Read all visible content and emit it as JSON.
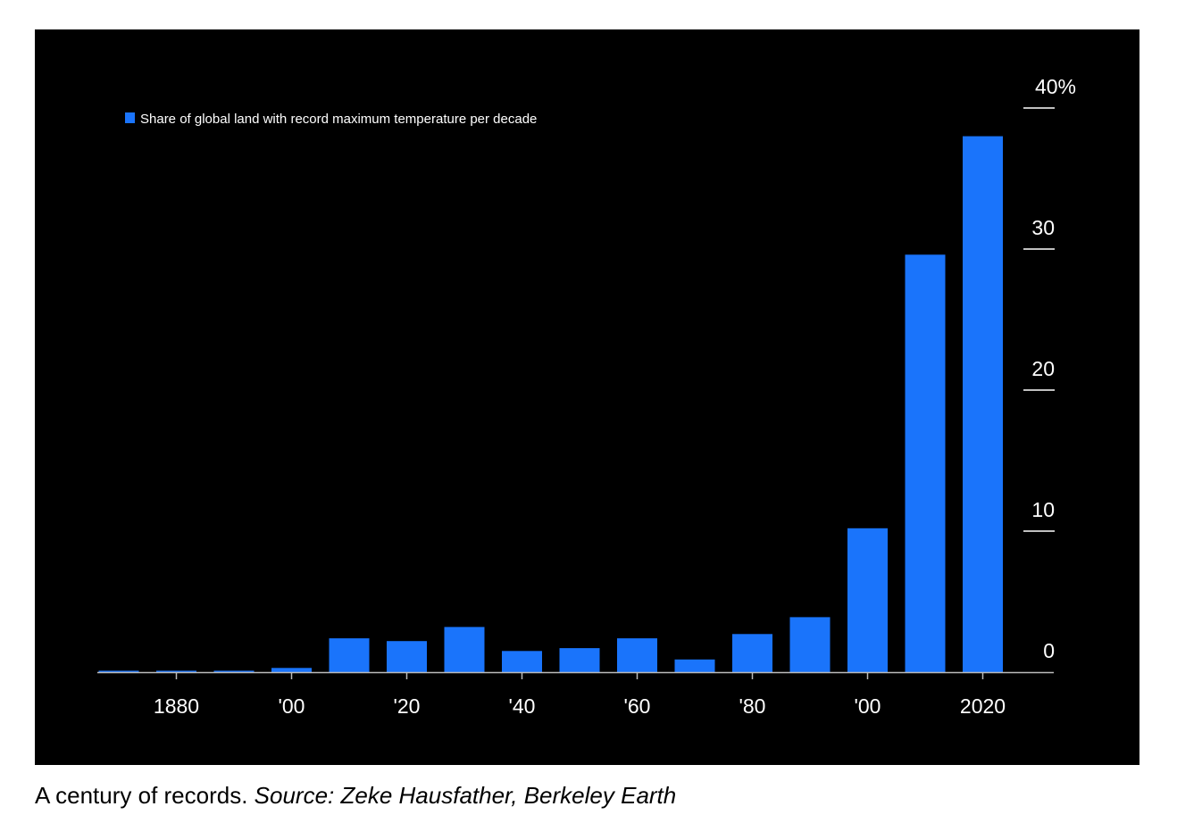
{
  "chart_data": {
    "type": "bar",
    "categories": [
      "1870",
      "1880",
      "1890",
      "1900",
      "1910",
      "1920",
      "1930",
      "1940",
      "1950",
      "1960",
      "1970",
      "1980",
      "1990",
      "2000",
      "2010",
      "2020"
    ],
    "series": [
      {
        "name": "Share of global land with record maximum temperature per decade",
        "values": [
          0.1,
          0.1,
          0.1,
          0.3,
          2.4,
          2.2,
          3.2,
          1.5,
          1.7,
          2.4,
          0.9,
          2.7,
          3.9,
          10.2,
          29.6,
          38.0
        ]
      }
    ],
    "x_tick_labels": [
      {
        "category": "1880",
        "label": "1880"
      },
      {
        "category": "1900",
        "label": "'00"
      },
      {
        "category": "1920",
        "label": "'20"
      },
      {
        "category": "1940",
        "label": "'40"
      },
      {
        "category": "1960",
        "label": "'60"
      },
      {
        "category": "1980",
        "label": "'80"
      },
      {
        "category": "2000",
        "label": "'00"
      },
      {
        "category": "2020",
        "label": "2020"
      }
    ],
    "y_ticks": [
      {
        "value": 0,
        "label": "0"
      },
      {
        "value": 10,
        "label": "10"
      },
      {
        "value": 20,
        "label": "20"
      },
      {
        "value": 30,
        "label": "30"
      },
      {
        "value": 40,
        "label": "40%"
      }
    ],
    "ylim": [
      0,
      40
    ],
    "y_axis_side": "right",
    "grid": false,
    "legend_position": "top-left",
    "colors": {
      "bar": "#1a74fb",
      "background": "#000000",
      "text": "#ffffff",
      "axis": "#bbbbbb"
    }
  },
  "caption": {
    "text": "A century of records. ",
    "source": "Source: Zeke Hausfather, Berkeley Earth"
  }
}
